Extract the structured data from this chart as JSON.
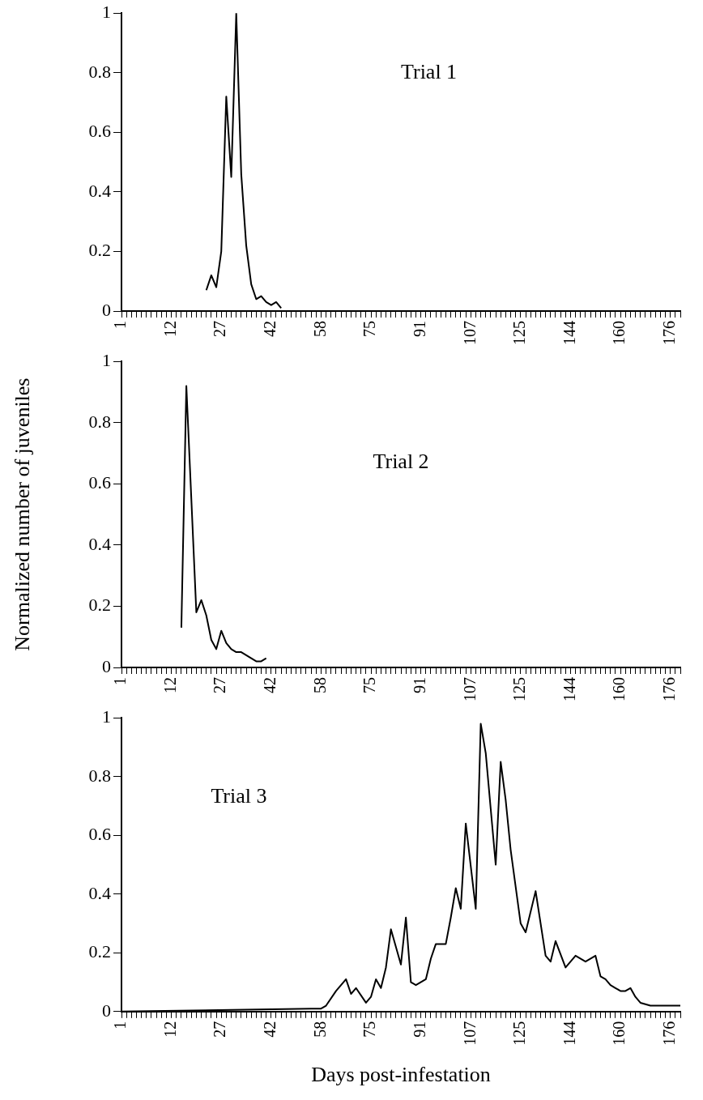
{
  "chart_data": [
    {
      "type": "line",
      "title": "Trial 1",
      "grid": false,
      "legend": false,
      "marker": "none",
      "ylim": [
        0,
        1
      ],
      "yticks": [
        0,
        0.2,
        0.4,
        0.6,
        0.8,
        1
      ],
      "categories": [
        "1",
        null,
        null,
        null,
        null,
        null,
        null,
        null,
        null,
        null,
        "12",
        null,
        null,
        null,
        null,
        null,
        null,
        null,
        null,
        null,
        "27",
        null,
        null,
        null,
        null,
        null,
        null,
        null,
        null,
        null,
        "42",
        null,
        null,
        null,
        null,
        null,
        null,
        null,
        null,
        null,
        "58",
        null,
        null,
        null,
        null,
        null,
        null,
        null,
        null,
        null,
        "75",
        null,
        null,
        null,
        null,
        null,
        null,
        null,
        null,
        null,
        "91",
        null,
        null,
        null,
        null,
        null,
        null,
        null,
        null,
        null,
        "107",
        null,
        null,
        null,
        null,
        null,
        null,
        null,
        null,
        null,
        "125",
        null,
        null,
        null,
        null,
        null,
        null,
        null,
        null,
        null,
        "144",
        null,
        null,
        null,
        null,
        null,
        null,
        null,
        null,
        null,
        "160",
        null,
        null,
        null,
        null,
        null,
        null,
        null,
        null,
        null,
        "176",
        null,
        null
      ],
      "series": [
        {
          "color": "#000000",
          "values": [
            null,
            null,
            null,
            null,
            null,
            null,
            null,
            null,
            null,
            null,
            null,
            null,
            null,
            null,
            null,
            null,
            null,
            0.07,
            0.12,
            0.08,
            0.2,
            0.72,
            0.45,
            1,
            0.46,
            0.22,
            0.09,
            0.04,
            0.05,
            0.03,
            0.02,
            0.03,
            0.01,
            null,
            null,
            null,
            null,
            null,
            null,
            null,
            null,
            null,
            null,
            null,
            null,
            null,
            null,
            null,
            null,
            null,
            null,
            null,
            null,
            null,
            null,
            null,
            null,
            null,
            null,
            null,
            null,
            null,
            null,
            null,
            null,
            null,
            null,
            null,
            null,
            null,
            null,
            null,
            null,
            null,
            null,
            null,
            null,
            null,
            null,
            null,
            null,
            null,
            null,
            null,
            null,
            null,
            null,
            null,
            null,
            null,
            null,
            null,
            null,
            null,
            null,
            null,
            null,
            null,
            null,
            null,
            null,
            null,
            null,
            null,
            null,
            null,
            null,
            null,
            null,
            null,
            null,
            null,
            null
          ]
        }
      ]
    },
    {
      "type": "line",
      "title": "Trial 2",
      "ylabel": "Normalized number of juveniles",
      "grid": false,
      "legend": false,
      "marker": "none",
      "ylim": [
        0,
        1
      ],
      "yticks": [
        0,
        0.2,
        0.4,
        0.6,
        0.8,
        1
      ],
      "categories": [
        "1",
        null,
        null,
        null,
        null,
        null,
        null,
        null,
        null,
        null,
        "12",
        null,
        null,
        null,
        null,
        null,
        null,
        null,
        null,
        null,
        "27",
        null,
        null,
        null,
        null,
        null,
        null,
        null,
        null,
        null,
        "42",
        null,
        null,
        null,
        null,
        null,
        null,
        null,
        null,
        null,
        "58",
        null,
        null,
        null,
        null,
        null,
        null,
        null,
        null,
        null,
        "75",
        null,
        null,
        null,
        null,
        null,
        null,
        null,
        null,
        null,
        "91",
        null,
        null,
        null,
        null,
        null,
        null,
        null,
        null,
        null,
        "107",
        null,
        null,
        null,
        null,
        null,
        null,
        null,
        null,
        null,
        "125",
        null,
        null,
        null,
        null,
        null,
        null,
        null,
        null,
        null,
        "144",
        null,
        null,
        null,
        null,
        null,
        null,
        null,
        null,
        null,
        "160",
        null,
        null,
        null,
        null,
        null,
        null,
        null,
        null,
        null,
        "176",
        null,
        null
      ],
      "series": [
        {
          "color": "#000000",
          "values": [
            null,
            null,
            null,
            null,
            null,
            null,
            null,
            null,
            null,
            null,
            null,
            null,
            0.13,
            0.92,
            0.55,
            0.18,
            0.22,
            0.17,
            0.09,
            0.06,
            0.12,
            0.08,
            0.06,
            0.05,
            0.05,
            0.04,
            0.03,
            0.02,
            0.02,
            0.03,
            null,
            null,
            null,
            null,
            null,
            null,
            null,
            null,
            null,
            null,
            null,
            null,
            null,
            null,
            null,
            null,
            null,
            null,
            null,
            null,
            null,
            null,
            null,
            null,
            null,
            null,
            null,
            null,
            null,
            null,
            null,
            null,
            null,
            null,
            null,
            null,
            null,
            null,
            null,
            null,
            null,
            null,
            null,
            null,
            null,
            null,
            null,
            null,
            null,
            null,
            null,
            null,
            null,
            null,
            null,
            null,
            null,
            null,
            null,
            null,
            null,
            null,
            null,
            null,
            null,
            null,
            null,
            null,
            null,
            null,
            null,
            null,
            null,
            null,
            null,
            null,
            null,
            null,
            null,
            null,
            null,
            null,
            null
          ]
        }
      ]
    },
    {
      "type": "line",
      "title": "Trial 3",
      "xlabel": "Days post-infestation",
      "grid": false,
      "legend": false,
      "marker": "none",
      "ylim": [
        0,
        1
      ],
      "yticks": [
        0,
        0.2,
        0.4,
        0.6,
        0.8,
        1
      ],
      "categories": [
        "1",
        null,
        null,
        null,
        null,
        null,
        null,
        null,
        null,
        null,
        "12",
        null,
        null,
        null,
        null,
        null,
        null,
        null,
        null,
        null,
        "27",
        null,
        null,
        null,
        null,
        null,
        null,
        null,
        null,
        null,
        "42",
        null,
        null,
        null,
        null,
        null,
        null,
        null,
        null,
        null,
        "58",
        null,
        null,
        null,
        null,
        null,
        null,
        null,
        null,
        null,
        "75",
        null,
        null,
        null,
        null,
        null,
        null,
        null,
        null,
        null,
        "91",
        null,
        null,
        null,
        null,
        null,
        null,
        null,
        null,
        null,
        "107",
        null,
        null,
        null,
        null,
        null,
        null,
        null,
        null,
        null,
        "125",
        null,
        null,
        null,
        null,
        null,
        null,
        null,
        null,
        null,
        "144",
        null,
        null,
        null,
        null,
        null,
        null,
        null,
        null,
        null,
        "160",
        null,
        null,
        null,
        null,
        null,
        null,
        null,
        null,
        null,
        "176",
        null,
        null
      ],
      "series": [
        {
          "color": "#000000",
          "values": [
            0,
            null,
            null,
            null,
            null,
            null,
            null,
            null,
            null,
            null,
            null,
            null,
            null,
            null,
            null,
            null,
            null,
            null,
            null,
            null,
            null,
            null,
            null,
            null,
            null,
            null,
            null,
            null,
            null,
            null,
            null,
            null,
            null,
            null,
            null,
            null,
            null,
            null,
            0.01,
            null,
            0.01,
            0.02,
            null,
            0.07,
            null,
            0.11,
            0.06,
            0.08,
            null,
            0.03,
            0.05,
            0.11,
            0.08,
            0.15,
            0.28,
            null,
            0.16,
            0.32,
            0.1,
            0.09,
            null,
            0.11,
            0.18,
            0.23,
            null,
            0.23,
            0.32,
            0.42,
            0.35,
            0.64,
            null,
            0.35,
            0.98,
            0.88,
            null,
            0.5,
            0.85,
            0.72,
            0.55,
            null,
            0.3,
            0.27,
            null,
            0.41,
            null,
            0.19,
            0.17,
            0.24,
            null,
            0.15,
            null,
            0.19,
            null,
            0.17,
            null,
            0.19,
            0.12,
            0.11,
            0.09,
            0.08,
            0.07,
            0.07,
            0.08,
            0.05,
            0.03,
            null,
            0.02,
            null,
            null,
            null,
            null,
            null,
            0.02
          ]
        }
      ]
    }
  ]
}
